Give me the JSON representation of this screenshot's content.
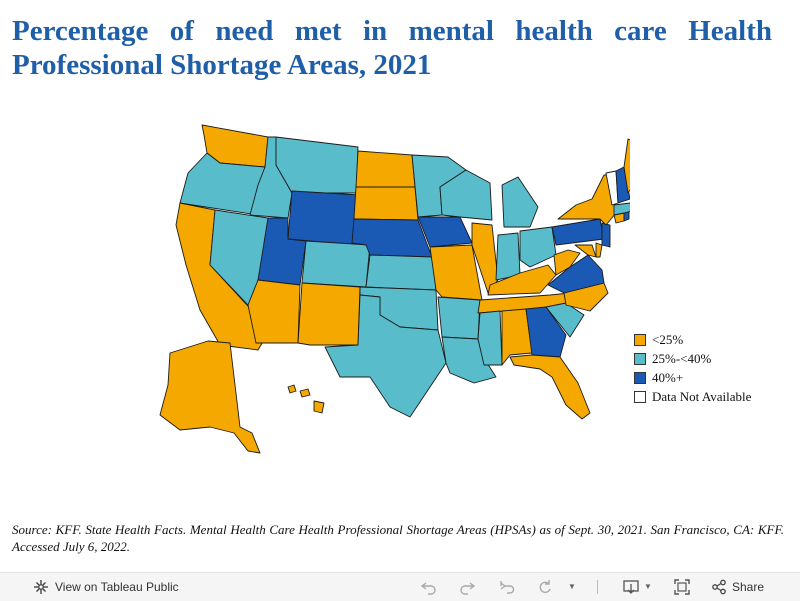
{
  "title": "Percentage of need met in mental health care Health Professional Shortage Areas, 2021",
  "legend": {
    "items": [
      {
        "label": "<25%",
        "color": "#f5a800"
      },
      {
        "label": "25%-<40%",
        "color": "#58bccb"
      },
      {
        "label": "40%+",
        "color": "#1a5ab5"
      },
      {
        "label": "Data Not Available",
        "color": "#ffffff"
      }
    ]
  },
  "map_data": {
    "type": "choropleth",
    "regions": {
      "Washington": "<25%",
      "Oregon": "25%-<40%",
      "California": "<25%",
      "Nevada": "25%-<40%",
      "Idaho": "25%-<40%",
      "Montana": "25%-<40%",
      "Wyoming": "40%+",
      "Utah": "40%+",
      "Arizona": "<25%",
      "Colorado": "25%-<40%",
      "New Mexico": "<25%",
      "North Dakota": "<25%",
      "South Dakota": "<25%",
      "Nebraska": "40%+",
      "Kansas": "25%-<40%",
      "Oklahoma": "25%-<40%",
      "Texas": "25%-<40%",
      "Minnesota": "25%-<40%",
      "Iowa": "40%+",
      "Missouri": "<25%",
      "Arkansas": "25%-<40%",
      "Louisiana": "25%-<40%",
      "Wisconsin": "25%-<40%",
      "Illinois": "<25%",
      "Michigan": "25%-<40%",
      "Indiana": "25%-<40%",
      "Ohio": "25%-<40%",
      "Kentucky": "<25%",
      "Tennessee": "<25%",
      "Mississippi": "25%-<40%",
      "Alabama": "<25%",
      "Georgia": "40%+",
      "Florida": "<25%",
      "South Carolina": "25%-<40%",
      "North Carolina": "<25%",
      "Virginia": "40%+",
      "West Virginia": "<25%",
      "Maryland": "<25%",
      "Delaware": "<25%",
      "Pennsylvania": "40%+",
      "New Jersey": "40%+",
      "New York": "<25%",
      "Connecticut": "<25%",
      "Rhode Island": "40%+",
      "Massachusetts": "25%-<40%",
      "Vermont": "Data Not Available",
      "New Hampshire": "40%+",
      "Maine": "<25%",
      "Alaska": "<25%",
      "Hawaii": "<25%"
    }
  },
  "source": "Source: KFF. State Health Facts. Mental Health Care Health Professional Shortage Areas (HPSAs) as of Sept. 30, 2021. San Francisco, CA: KFF. Accessed July 6, 2022.",
  "footer": {
    "view_label": "View on Tableau Public",
    "share_label": "Share",
    "icons": [
      "tableau-icon",
      "undo-icon",
      "redo-icon",
      "revert-icon",
      "refresh-icon",
      "download-icon",
      "fullscreen-icon",
      "share-icon"
    ]
  }
}
